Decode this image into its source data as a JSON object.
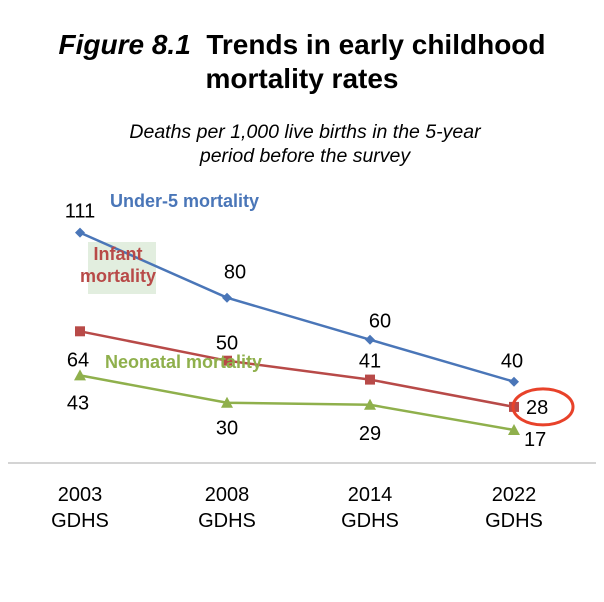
{
  "figure": {
    "number": "Figure 8.1",
    "title_part1": "Trends in early childhood",
    "title_part2": "mortality rates",
    "subtitle_line1": "Deaths per 1,000 live births in the 5-year",
    "subtitle_line2": "period before the survey"
  },
  "chart_data": {
    "type": "line",
    "title": "Figure 8.1 Trends in early childhood mortality rates",
    "subtitle": "Deaths per 1,000 live births in the 5-year period before the survey",
    "categories": [
      [
        "2003",
        "GDHS"
      ],
      [
        "2008",
        "GDHS"
      ],
      [
        "2014",
        "GDHS"
      ],
      [
        "2022",
        "GDHS"
      ]
    ],
    "xlabel": "",
    "ylabel": "",
    "ylim": [
      0,
      120
    ],
    "grid": false,
    "series": [
      {
        "name": "Under-5 mortality",
        "label_lines": [
          "Under-5 mortality"
        ],
        "color": "#4a76b8",
        "marker": "diamond",
        "values": [
          111,
          80,
          60,
          40
        ]
      },
      {
        "name": "Infant mortality",
        "label_lines": [
          "Infant",
          "mortality"
        ],
        "color": "#b84a48",
        "marker": "square",
        "values": [
          64,
          50,
          41,
          28
        ]
      },
      {
        "name": "Neonatal mortality",
        "label_lines": [
          "Neonatal mortality"
        ],
        "color": "#8fb04c",
        "marker": "triangle",
        "values": [
          43,
          30,
          29,
          17
        ]
      }
    ],
    "annotation": {
      "highlighted_value": 28,
      "series": "Infant mortality",
      "category_index": 3,
      "color": "#e8422a"
    }
  }
}
